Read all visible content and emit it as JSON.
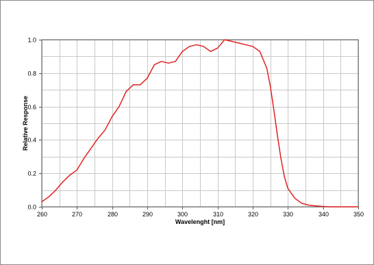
{
  "chart_data": {
    "type": "line",
    "title": "",
    "xlabel": "Wavelenght [nm]",
    "ylabel": "Relative Response",
    "xlim": [
      260,
      350
    ],
    "ylim": [
      0,
      1.0
    ],
    "x_ticks": [
      "260",
      "270",
      "280",
      "290",
      "300",
      "310",
      "320",
      "330",
      "340",
      "350"
    ],
    "y_ticks": [
      "0.0",
      "0.2",
      "0.4",
      "0.6",
      "0.8",
      "1.0"
    ],
    "x_tick_values": [
      260,
      270,
      280,
      290,
      300,
      310,
      320,
      330,
      340,
      350
    ],
    "y_tick_values": [
      0.0,
      0.2,
      0.4,
      0.6,
      0.8,
      1.0
    ],
    "grid": true,
    "minor_grid_x_step": 5,
    "minor_grid_y_step": 0.1,
    "line_color": "#e02020",
    "grid_color": "#c8c8c8",
    "series": [
      {
        "x": [
          260,
          262,
          264,
          266,
          268,
          270,
          272,
          274,
          276,
          278,
          280,
          282,
          284,
          286,
          288,
          290,
          292,
          294,
          296,
          298,
          300,
          302,
          304,
          306,
          308,
          310,
          312,
          314,
          316,
          318,
          320,
          322,
          324,
          325,
          326,
          327,
          328,
          329,
          330,
          332,
          334,
          336,
          338,
          340,
          342,
          344,
          346,
          348,
          350
        ],
        "y": [
          0.03,
          0.06,
          0.1,
          0.15,
          0.19,
          0.22,
          0.29,
          0.35,
          0.41,
          0.46,
          0.54,
          0.6,
          0.69,
          0.73,
          0.73,
          0.77,
          0.85,
          0.87,
          0.86,
          0.87,
          0.93,
          0.96,
          0.97,
          0.96,
          0.93,
          0.95,
          1.0,
          0.99,
          0.98,
          0.97,
          0.96,
          0.93,
          0.83,
          0.72,
          0.58,
          0.43,
          0.29,
          0.18,
          0.11,
          0.05,
          0.02,
          0.01,
          0.005,
          0.002,
          0.0,
          0.0,
          0.0,
          0.0,
          0.0
        ]
      }
    ]
  }
}
